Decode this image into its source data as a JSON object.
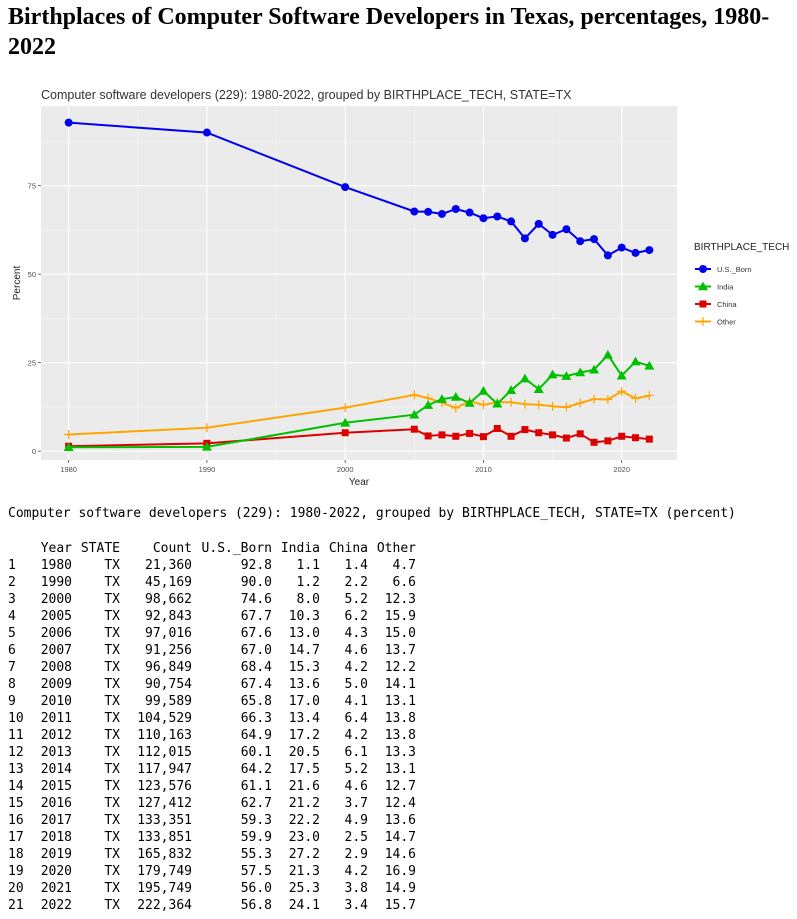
{
  "page": {
    "title": "Birthplaces of Computer Software Developers in Texas, percentages, 1980-2022",
    "table_caption": "Computer software developers (229): 1980-2022, grouped by BIRTHPLACE_TECH, STATE=TX (percent)"
  },
  "table": {
    "columns": [
      "Year",
      "STATE",
      "Count",
      "U.S._Born",
      "India",
      "China",
      "Other"
    ],
    "rows": [
      [
        "1",
        "1980",
        "TX",
        "21,360",
        "92.8",
        "1.1",
        "1.4",
        "4.7"
      ],
      [
        "2",
        "1990",
        "TX",
        "45,169",
        "90.0",
        "1.2",
        "2.2",
        "6.6"
      ],
      [
        "3",
        "2000",
        "TX",
        "98,662",
        "74.6",
        "8.0",
        "5.2",
        "12.3"
      ],
      [
        "4",
        "2005",
        "TX",
        "92,843",
        "67.7",
        "10.3",
        "6.2",
        "15.9"
      ],
      [
        "5",
        "2006",
        "TX",
        "97,016",
        "67.6",
        "13.0",
        "4.3",
        "15.0"
      ],
      [
        "6",
        "2007",
        "TX",
        "91,256",
        "67.0",
        "14.7",
        "4.6",
        "13.7"
      ],
      [
        "7",
        "2008",
        "TX",
        "96,849",
        "68.4",
        "15.3",
        "4.2",
        "12.2"
      ],
      [
        "8",
        "2009",
        "TX",
        "90,754",
        "67.4",
        "13.6",
        "5.0",
        "14.1"
      ],
      [
        "9",
        "2010",
        "TX",
        "99,589",
        "65.8",
        "17.0",
        "4.1",
        "13.1"
      ],
      [
        "10",
        "2011",
        "TX",
        "104,529",
        "66.3",
        "13.4",
        "6.4",
        "13.8"
      ],
      [
        "11",
        "2012",
        "TX",
        "110,163",
        "64.9",
        "17.2",
        "4.2",
        "13.8"
      ],
      [
        "12",
        "2013",
        "TX",
        "112,015",
        "60.1",
        "20.5",
        "6.1",
        "13.3"
      ],
      [
        "13",
        "2014",
        "TX",
        "117,947",
        "64.2",
        "17.5",
        "5.2",
        "13.1"
      ],
      [
        "14",
        "2015",
        "TX",
        "123,576",
        "61.1",
        "21.6",
        "4.6",
        "12.7"
      ],
      [
        "15",
        "2016",
        "TX",
        "127,412",
        "62.7",
        "21.2",
        "3.7",
        "12.4"
      ],
      [
        "16",
        "2017",
        "TX",
        "133,351",
        "59.3",
        "22.2",
        "4.9",
        "13.6"
      ],
      [
        "17",
        "2018",
        "TX",
        "133,851",
        "59.9",
        "23.0",
        "2.5",
        "14.7"
      ],
      [
        "18",
        "2019",
        "TX",
        "165,832",
        "55.3",
        "27.2",
        "2.9",
        "14.6"
      ],
      [
        "19",
        "2020",
        "TX",
        "179,749",
        "57.5",
        "21.3",
        "4.2",
        "16.9"
      ],
      [
        "20",
        "2021",
        "TX",
        "195,749",
        "56.0",
        "25.3",
        "3.8",
        "14.9"
      ],
      [
        "21",
        "2022",
        "TX",
        "222,364",
        "56.8",
        "24.1",
        "3.4",
        "15.7"
      ]
    ]
  },
  "chart_data": {
    "type": "line",
    "title": "Computer software developers (229): 1980-2022, grouped by BIRTHPLACE_TECH, STATE=TX",
    "xlabel": "Year",
    "ylabel": "Percent",
    "x": [
      1980,
      1990,
      2000,
      2005,
      2006,
      2007,
      2008,
      2009,
      2010,
      2011,
      2012,
      2013,
      2014,
      2015,
      2016,
      2017,
      2018,
      2019,
      2020,
      2021,
      2022
    ],
    "xlim": [
      1978,
      2024
    ],
    "ylim": [
      -2.5,
      97.5
    ],
    "xticks": [
      1980,
      1990,
      2000,
      2010,
      2020
    ],
    "yticks": [
      0,
      25,
      50,
      75
    ],
    "grid": true,
    "legend_title": "BIRTHPLACE_TECH",
    "legend_position": "right",
    "background": "#ebebeb",
    "series": [
      {
        "name": "U.S._Born",
        "color": "#0000ee",
        "marker": "circle",
        "values": [
          92.8,
          90.0,
          74.6,
          67.7,
          67.6,
          67.0,
          68.4,
          67.4,
          65.8,
          66.3,
          64.9,
          60.1,
          64.2,
          61.1,
          62.7,
          59.3,
          59.9,
          55.3,
          57.5,
          56.0,
          56.8
        ]
      },
      {
        "name": "India",
        "color": "#00c000",
        "marker": "triangle",
        "values": [
          1.1,
          1.2,
          8.0,
          10.3,
          13.0,
          14.7,
          15.3,
          13.6,
          17.0,
          13.4,
          17.2,
          20.5,
          17.5,
          21.6,
          21.2,
          22.2,
          23.0,
          27.2,
          21.3,
          25.3,
          24.1
        ]
      },
      {
        "name": "China",
        "color": "#dd0000",
        "marker": "square",
        "values": [
          1.4,
          2.2,
          5.2,
          6.2,
          4.3,
          4.6,
          4.2,
          5.0,
          4.1,
          6.4,
          4.2,
          6.1,
          5.2,
          4.6,
          3.7,
          4.9,
          2.5,
          2.9,
          4.2,
          3.8,
          3.4
        ]
      },
      {
        "name": "Other",
        "color": "#ffa500",
        "marker": "plus",
        "values": [
          4.7,
          6.6,
          12.3,
          15.9,
          15.0,
          13.7,
          12.2,
          14.1,
          13.1,
          13.8,
          13.8,
          13.3,
          13.1,
          12.7,
          12.4,
          13.6,
          14.7,
          14.6,
          16.9,
          14.9,
          15.7
        ]
      }
    ]
  }
}
